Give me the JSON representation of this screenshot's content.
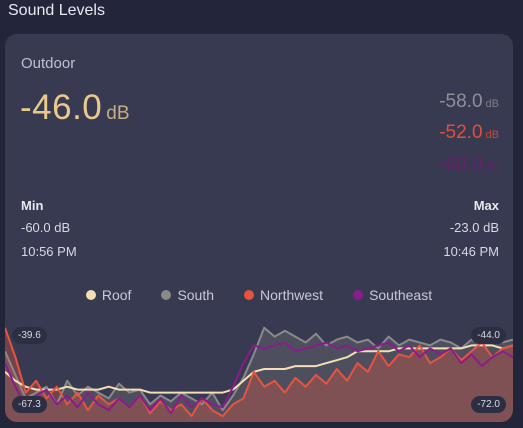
{
  "header": {
    "title": "Sound Levels"
  },
  "card": {
    "name": "Outdoor",
    "primary": {
      "value": "-46.0",
      "unit": "dB"
    },
    "secondary": [
      {
        "value": "-58.0",
        "unit": "dB",
        "color": "#8e8f99"
      },
      {
        "value": "-52.0",
        "unit": "dB",
        "color": "#e0503c"
      },
      {
        "value": "-60.0",
        "unit": "dB",
        "color": "#6b1e6e"
      }
    ],
    "stats": {
      "min": {
        "label": "Min",
        "value": "-60.0 dB",
        "time": "10:56 PM"
      },
      "max": {
        "label": "Max",
        "value": "-23.0 dB",
        "time": "10:46 PM"
      }
    },
    "legend": [
      {
        "label": "Roof",
        "color": "#f3dfb3"
      },
      {
        "label": "South",
        "color": "#8a8a8a"
      },
      {
        "label": "Northwest",
        "color": "#e8533f"
      },
      {
        "label": "Southeast",
        "color": "#8b1c8c"
      }
    ],
    "chart_labels": {
      "top_left": "-39.6",
      "bottom_left": "-67.3",
      "top_right": "-44.0",
      "bottom_right": "-72.0"
    }
  },
  "chart_data": {
    "type": "line",
    "series": [
      {
        "name": "Roof",
        "color": "#f3dfb3",
        "values": [
          -55,
          -58,
          -60,
          -61,
          -61,
          -61,
          -60,
          -61,
          -61,
          -61,
          -60,
          -61,
          -61,
          -61,
          -62,
          -62,
          -62,
          -62,
          -62,
          -62,
          -62,
          -62,
          -61,
          -58,
          -55,
          -54,
          -54,
          -54,
          -53,
          -53,
          -53,
          -52,
          -51,
          -50,
          -48,
          -48,
          -48,
          -48,
          -47,
          -47,
          -47,
          -47,
          -47,
          -47,
          -47,
          -46,
          -46,
          -46,
          -47,
          -46
        ]
      },
      {
        "name": "South",
        "color": "#8a8a8a",
        "values": [
          -48,
          -56,
          -64,
          -62,
          -60,
          -66,
          -58,
          -63,
          -60,
          -62,
          -64,
          -59,
          -62,
          -61,
          -66,
          -63,
          -65,
          -62,
          -64,
          -66,
          -62,
          -68,
          -63,
          -57,
          -49,
          -40,
          -43,
          -41,
          -43,
          -45,
          -42,
          -46,
          -44,
          -43,
          -45,
          -44,
          -47,
          -43,
          -46,
          -44,
          -45,
          -46,
          -44,
          -45,
          -47,
          -44,
          -46,
          -43,
          -45,
          -44
        ]
      },
      {
        "name": "Northwest",
        "color": "#e8533f",
        "values": [
          -40,
          -50,
          -62,
          -58,
          -64,
          -60,
          -66,
          -62,
          -68,
          -63,
          -66,
          -64,
          -67,
          -63,
          -69,
          -65,
          -68,
          -66,
          -70,
          -64,
          -68,
          -70,
          -66,
          -64,
          -55,
          -60,
          -58,
          -62,
          -57,
          -60,
          -56,
          -59,
          -54,
          -58,
          -52,
          -55,
          -48,
          -53,
          -49,
          -50,
          -46,
          -52,
          -50,
          -47,
          -51,
          -48,
          -45,
          -50,
          -47,
          -46
        ]
      },
      {
        "name": "Southeast",
        "color": "#8b1c8c",
        "values": [
          -52,
          -60,
          -67,
          -63,
          -61,
          -66,
          -63,
          -67,
          -62,
          -66,
          -68,
          -64,
          -67,
          -63,
          -68,
          -64,
          -69,
          -63,
          -67,
          -64,
          -66,
          -67,
          -60,
          -52,
          -46,
          -47,
          -46,
          -45,
          -48,
          -47,
          -46,
          -45,
          -47,
          -46,
          -48,
          -47,
          -46,
          -45,
          -48,
          -46,
          -50,
          -47,
          -49,
          -47,
          -52,
          -49,
          -53,
          -50,
          -48,
          -50
        ]
      }
    ],
    "ylim": [
      -72,
      -36
    ]
  }
}
